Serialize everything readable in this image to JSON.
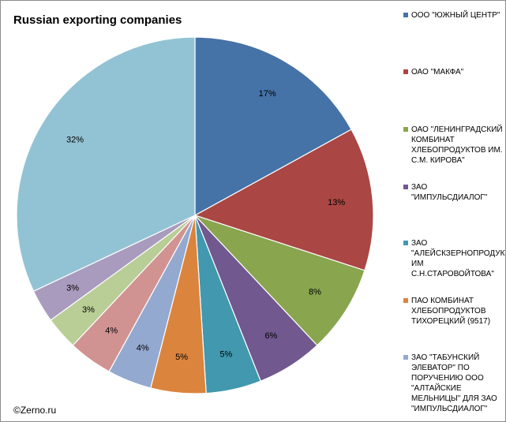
{
  "chart_data": {
    "type": "pie",
    "title": "Russian exporting companies",
    "legend_position": "right",
    "slices": [
      {
        "label": "ООО \"ЮЖНЫЙ ЦЕНТР\"",
        "value": 17,
        "value_label": "17%",
        "color": "#4572A7"
      },
      {
        "label": "ОАО \"МАКФА\"",
        "value": 13,
        "value_label": "13%",
        "color": "#AA4643"
      },
      {
        "label": "ОАО \"ЛЕНИНГРАДСКИЙ КОМБИНАТ ХЛЕБОПРОДУКТОВ ИМ. С.М. КИРОВА\"",
        "value": 8,
        "value_label": "8%",
        "color": "#89A54E"
      },
      {
        "label": "ЗАО \"ИМПУЛЬСДИАЛОГ\"",
        "value": 6,
        "value_label": "6%",
        "color": "#71588F"
      },
      {
        "label": "ЗАО \"АЛЕЙСКЗЕРНОПРОДУКТ ИМ С.Н.СТАРОВОЙТОВА\"",
        "value": 5,
        "value_label": "5%",
        "color": "#4198AF"
      },
      {
        "label": "ПАО КОМБИНАТ ХЛЕБОПРОДУКТОВ ТИХОРЕЦКИЙ (9517)",
        "value": 5,
        "value_label": "5%",
        "color": "#DB843D"
      },
      {
        "label": "ЗАО \"ТАБУНСКИЙ ЭЛЕВАТОР\" ПО ПОРУЧЕНИЮ ООО \"АЛТАЙСКИЕ МЕЛЬНИЦЫ\" ДЛЯ ЗАО \"ИМПУЛЬСДИАЛОГ\"",
        "value": 4,
        "value_label": "4%",
        "color": "#93A9CF"
      },
      {
        "label": "",
        "value": 4,
        "value_label": "4%",
        "color": "#D19392"
      },
      {
        "label": "",
        "value": 3,
        "value_label": "3%",
        "color": "#B9CD96"
      },
      {
        "label": "",
        "value": 3,
        "value_label": "3%",
        "color": "#A99BBD"
      },
      {
        "label": "",
        "value": 32,
        "value_label": "32%",
        "color": "#92C3D4"
      }
    ]
  },
  "watermark": "©Zerno.ru"
}
